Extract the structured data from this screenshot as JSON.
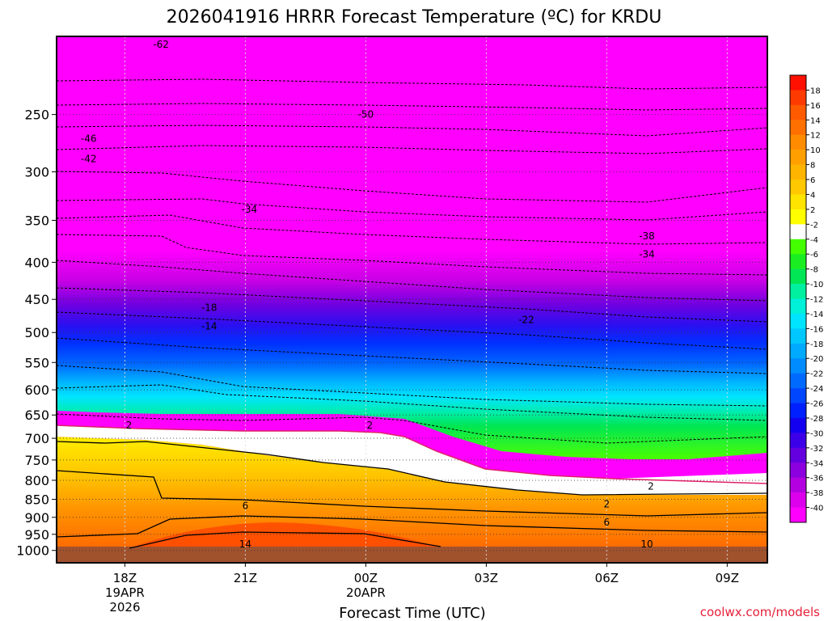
{
  "chart_data": {
    "type": "heatmap",
    "title": "2026041916 HRRR Forecast Temperature (ºC) for KRDU",
    "xlabel": "Forecast Time (UTC)",
    "credit": "coolwx.com/models",
    "y_scale": "log (pressure, hPa, inverted)",
    "y_range_hPa": [
      195,
      1040
    ],
    "y_ticks": [
      "250",
      "300",
      "350",
      "400",
      "450",
      "500",
      "550",
      "600",
      "650",
      "700",
      "750",
      "800",
      "850",
      "900",
      "950",
      "1000"
    ],
    "x_range_hours": [
      16.3,
      34
    ],
    "x_ticks": [
      {
        "label": "18Z",
        "sub1": "19APR",
        "sub2": "2026"
      },
      {
        "label": "21Z",
        "sub1": "",
        "sub2": ""
      },
      {
        "label": "00Z",
        "sub1": "20APR",
        "sub2": ""
      },
      {
        "label": "03Z",
        "sub1": "",
        "sub2": ""
      },
      {
        "label": "06Z",
        "sub1": "",
        "sub2": ""
      },
      {
        "label": "09Z",
        "sub1": "",
        "sub2": ""
      }
    ],
    "colorbar": {
      "labels": [
        "18",
        "16",
        "14",
        "12",
        "10",
        "8",
        "6",
        "4",
        "2",
        "-2",
        "-4",
        "-6",
        "-8",
        "-10",
        "-12",
        "-14",
        "-16",
        "-18",
        "-20",
        "-22",
        "-24",
        "-26",
        "-28",
        "-30",
        "-32",
        "-34",
        "-36",
        "-38",
        "-40"
      ],
      "colors": [
        "#ff1000",
        "#ff3a00",
        "#ff5a00",
        "#ff7000",
        "#ff8c00",
        "#ffa000",
        "#ffb400",
        "#ffc800",
        "#ffe400",
        "#ffff00",
        "#ffffff",
        "#44ff00",
        "#1aee22",
        "#00e655",
        "#00f0a0",
        "#00f0d8",
        "#00e4ff",
        "#00c8ff",
        "#00aaff",
        "#008cff",
        "#006aff",
        "#0046ff",
        "#0020ff",
        "#1400f0",
        "#3c00e8",
        "#6400e0",
        "#8c00e0",
        "#b400e0",
        "#dc00ec",
        "#ff00ff"
      ]
    },
    "contour_labels": [
      {
        "text": "-62",
        "t": 18.9,
        "p": 200
      },
      {
        "text": "-50",
        "t": 24.0,
        "p": 250
      },
      {
        "text": "-46",
        "t": 17.1,
        "p": 270
      },
      {
        "text": "-42",
        "t": 17.1,
        "p": 288
      },
      {
        "text": "-34",
        "t": 21.1,
        "p": 338
      },
      {
        "text": "-38",
        "t": 31.0,
        "p": 368
      },
      {
        "text": "-34",
        "t": 31.0,
        "p": 390
      },
      {
        "text": "-18",
        "t": 20.1,
        "p": 462
      },
      {
        "text": "-22",
        "t": 28.0,
        "p": 480
      },
      {
        "text": "-14",
        "t": 20.1,
        "p": 490
      },
      {
        "text": "2",
        "t": 18.1,
        "p": 672
      },
      {
        "text": "2",
        "t": 24.1,
        "p": 672
      },
      {
        "text": "2",
        "t": 31.1,
        "p": 816
      },
      {
        "text": "2",
        "t": 30.0,
        "p": 863
      },
      {
        "text": "6",
        "t": 21.0,
        "p": 868
      },
      {
        "text": "6",
        "t": 30.0,
        "p": 915
      },
      {
        "text": "14",
        "t": 21.0,
        "p": 980
      },
      {
        "text": "10",
        "t": 31.0,
        "p": 980
      }
    ]
  }
}
